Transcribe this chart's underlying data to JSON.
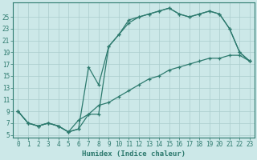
{
  "xlabel": "Humidex (Indice chaleur)",
  "bg_color": "#cce8e8",
  "line_color": "#2d7a6e",
  "grid_color": "#aacccc",
  "line1_x": [
    0,
    1,
    2,
    3,
    4,
    5,
    6,
    7,
    8,
    9,
    10,
    11,
    12,
    13,
    14,
    15,
    16,
    17,
    18,
    19,
    20,
    21,
    22,
    23
  ],
  "line1_y": [
    9,
    7,
    6.5,
    7,
    6.5,
    5.5,
    6,
    8.5,
    8.5,
    20,
    22,
    24.5,
    25,
    25.5,
    26,
    26.5,
    25.5,
    25,
    25.5,
    26,
    25.5,
    23,
    19,
    17.5
  ],
  "line2_x": [
    0,
    1,
    2,
    3,
    4,
    5,
    6,
    7,
    8,
    9,
    10,
    11,
    12,
    13,
    14,
    15,
    16,
    17,
    18,
    19,
    20,
    21,
    22,
    23
  ],
  "line2_y": [
    9,
    7,
    6.5,
    7,
    6.5,
    5.5,
    6,
    16.5,
    13.5,
    20,
    22,
    24,
    25,
    25.5,
    26,
    26.5,
    25.5,
    25,
    25.5,
    26,
    25.5,
    23,
    19,
    17.5
  ],
  "line3_x": [
    0,
    1,
    2,
    3,
    4,
    5,
    6,
    7,
    8,
    9,
    10,
    11,
    12,
    13,
    14,
    15,
    16,
    17,
    18,
    19,
    20,
    21,
    22,
    23
  ],
  "line3_y": [
    9,
    7,
    6.5,
    7,
    6.5,
    5.5,
    7.5,
    8.5,
    10,
    10.5,
    11.5,
    12.5,
    13.5,
    14.5,
    15,
    16,
    16.5,
    17,
    17.5,
    18,
    18,
    18.5,
    18.5,
    17.5
  ],
  "xlim": [
    -0.5,
    23.5
  ],
  "ylim": [
    4.5,
    27.5
  ],
  "yticks": [
    5,
    7,
    9,
    11,
    13,
    15,
    17,
    19,
    21,
    23,
    25
  ],
  "xticks": [
    0,
    1,
    2,
    3,
    4,
    5,
    6,
    7,
    8,
    9,
    10,
    11,
    12,
    13,
    14,
    15,
    16,
    17,
    18,
    19,
    20,
    21,
    22,
    23
  ]
}
